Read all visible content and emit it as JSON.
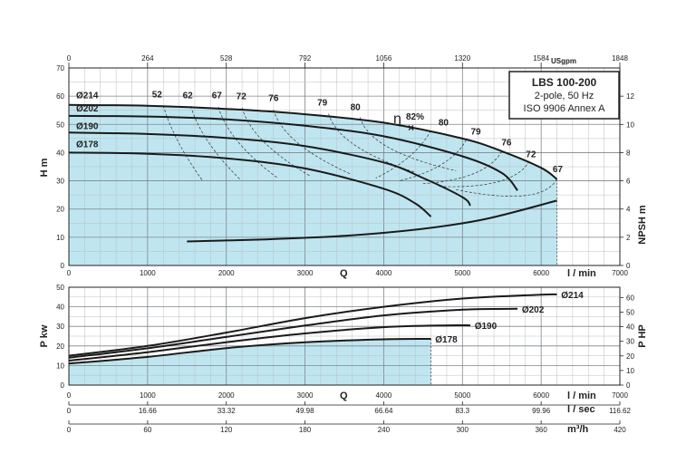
{
  "title_box": {
    "title": "LBS 100-200",
    "line2": "2-pole, 50 Hz",
    "line3": "ISO 9906 Annex A"
  },
  "colors": {
    "fill": "#bfe6f0",
    "curve": "#1a1a1a",
    "grid": "#9aa0a6",
    "frame": "#222222"
  },
  "axes": {
    "top_usgpm": {
      "unit": "USgpm",
      "ticks": [
        "0",
        "264",
        "528",
        "792",
        "1056",
        "1320",
        "1584",
        "1848"
      ]
    },
    "q_lmin": {
      "label": "Q",
      "unit": "l / min",
      "ticks": [
        "0",
        "1000",
        "2000",
        "3000",
        "4000",
        "5000",
        "6000",
        "7000"
      ],
      "range": [
        0,
        7000
      ]
    },
    "q_lsec": {
      "unit": "l / sec",
      "ticks": [
        "0",
        "16.66",
        "33.32",
        "49.98",
        "66.64",
        "83.3",
        "99.96",
        "116.62"
      ]
    },
    "q_m3h": {
      "unit": "m³/h",
      "ticks": [
        "0",
        "60",
        "120",
        "180",
        "240",
        "300",
        "360",
        "420"
      ]
    },
    "head": {
      "label": "H m",
      "range": [
        0,
        70
      ],
      "ticks": [
        "0",
        "10",
        "20",
        "30",
        "40",
        "50",
        "60",
        "70"
      ]
    },
    "npsh": {
      "label": "NPSH m",
      "range": [
        0,
        14
      ],
      "ticks": [
        "0",
        "2",
        "4",
        "6",
        "8",
        "10",
        "12"
      ]
    },
    "power_kw": {
      "label": "P kw",
      "range": [
        0,
        50
      ],
      "ticks": [
        "0",
        "10",
        "20",
        "30",
        "40",
        "50"
      ]
    },
    "power_hp": {
      "label": "P HP",
      "range": [
        0,
        67.05
      ],
      "ticks": [
        "0",
        "10",
        "20",
        "30",
        "40",
        "50",
        "60"
      ]
    }
  },
  "chart_data": [
    {
      "type": "line",
      "panel": "head",
      "xlabel": "Q",
      "ylabel": "H m",
      "grid": true,
      "xlim": [
        0,
        7000
      ],
      "ylim": [
        0,
        70
      ],
      "series": [
        {
          "name": "Ø214",
          "x": [
            0,
            1000,
            2000,
            3000,
            4000,
            5000,
            5500,
            6000,
            6200
          ],
          "y": [
            56.9,
            56.6,
            55.5,
            53.6,
            50.6,
            45.0,
            40.5,
            34.6,
            30.6
          ]
        },
        {
          "name": "Ø202",
          "x": [
            0,
            1000,
            2000,
            3000,
            4000,
            5000,
            5500,
            5700
          ],
          "y": [
            53.0,
            52.8,
            51.8,
            49.5,
            45.8,
            38.7,
            32.8,
            26.6
          ]
        },
        {
          "name": "Ø190",
          "x": [
            0,
            1000,
            2000,
            3000,
            4000,
            4500,
            5000,
            5100
          ],
          "y": [
            47.1,
            46.6,
            45.2,
            42.3,
            36.5,
            31.0,
            24.2,
            21.2
          ]
        },
        {
          "name": "Ø178",
          "x": [
            0,
            1000,
            2000,
            3000,
            4000,
            4400,
            4600
          ],
          "y": [
            40.0,
            39.6,
            38.0,
            34.4,
            27.2,
            22.0,
            17.3
          ]
        }
      ],
      "efficiency_labels": {
        "left": [
          "52",
          "62",
          "67",
          "72",
          "76",
          "79",
          "80"
        ],
        "right": [
          "80",
          "79",
          "76",
          "72",
          "67"
        ],
        "best": "82%",
        "eta_symbol": "η"
      },
      "curve_labels": [
        "Ø214",
        "Ø202",
        "Ø190",
        "Ø178"
      ]
    },
    {
      "type": "line",
      "panel": "npsh",
      "ylabel": "NPSH m",
      "xlim": [
        0,
        7000
      ],
      "ylim": [
        0,
        14
      ],
      "series": [
        {
          "name": "NPSH",
          "x": [
            1500,
            2500,
            3500,
            4500,
            5300,
            6200
          ],
          "y": [
            1.7,
            1.85,
            2.1,
            2.6,
            3.3,
            4.6
          ]
        }
      ]
    },
    {
      "type": "line",
      "panel": "power",
      "xlabel": "Q",
      "ylabel": "P kw",
      "grid": true,
      "xlim": [
        0,
        7000
      ],
      "ylim": [
        0,
        50
      ],
      "series": [
        {
          "name": "Ø214",
          "x": [
            0,
            1000,
            2000,
            3000,
            4000,
            5000,
            6000,
            6200
          ],
          "y": [
            15.0,
            20.0,
            26.8,
            34.2,
            40.0,
            44.2,
            46.2,
            46.3
          ]
        },
        {
          "name": "Ø202",
          "x": [
            0,
            1000,
            2000,
            3000,
            4000,
            5000,
            5700
          ],
          "y": [
            14.0,
            18.8,
            24.6,
            30.4,
            35.6,
            38.5,
            39.0
          ]
        },
        {
          "name": "Ø190",
          "x": [
            0,
            1000,
            2000,
            3000,
            4000,
            4800,
            5100
          ],
          "y": [
            12.5,
            16.8,
            21.9,
            26.4,
            29.6,
            30.5,
            30.5
          ]
        },
        {
          "name": "Ø178",
          "x": [
            0,
            1000,
            2000,
            3000,
            4000,
            4600
          ],
          "y": [
            11.0,
            14.4,
            18.9,
            21.9,
            23.4,
            23.6
          ]
        }
      ],
      "curve_labels": [
        "Ø214",
        "Ø202",
        "Ø190",
        "Ø178"
      ]
    }
  ]
}
